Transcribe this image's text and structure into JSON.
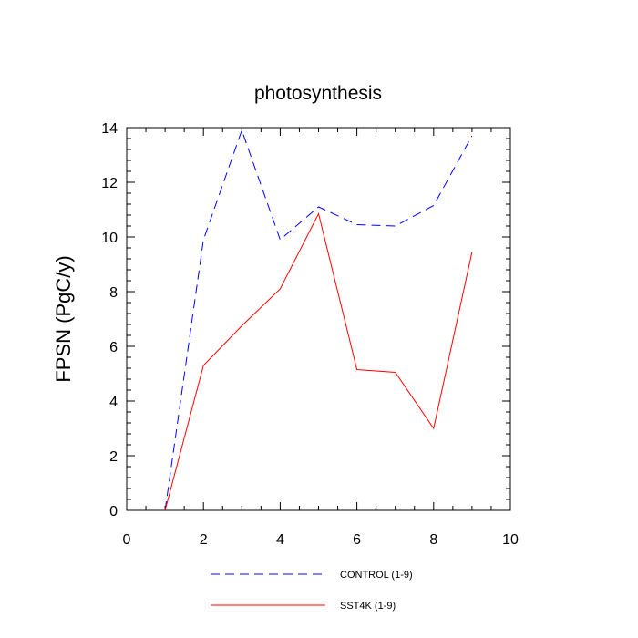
{
  "chart_data": {
    "type": "line",
    "title": "photosynthesis",
    "xlabel": "",
    "ylabel": "FPSN  (PgC/y)",
    "xlim": [
      0,
      10
    ],
    "ylim": [
      0,
      14
    ],
    "x_ticks": [
      "0",
      "2",
      "4",
      "6",
      "8",
      "10"
    ],
    "y_ticks": [
      "0",
      "2",
      "4",
      "6",
      "8",
      "10",
      "12",
      "14"
    ],
    "grid": false,
    "legend_position": "bottom",
    "series": [
      {
        "name": "CONTROL (1-9)",
        "color": "#0000ff",
        "style": "dashed",
        "x": [
          1,
          2,
          3,
          4,
          5,
          6,
          7,
          8,
          9
        ],
        "values": [
          0.0,
          9.9,
          13.9,
          9.9,
          11.1,
          10.45,
          10.4,
          11.15,
          13.7
        ]
      },
      {
        "name": "SST4K (1-9)",
        "color": "#ff0000",
        "style": "solid",
        "x": [
          1,
          2,
          3,
          4,
          5,
          6,
          7,
          8,
          9
        ],
        "values": [
          0.0,
          5.3,
          6.75,
          8.1,
          10.85,
          5.15,
          5.05,
          3.0,
          9.45
        ]
      }
    ]
  }
}
